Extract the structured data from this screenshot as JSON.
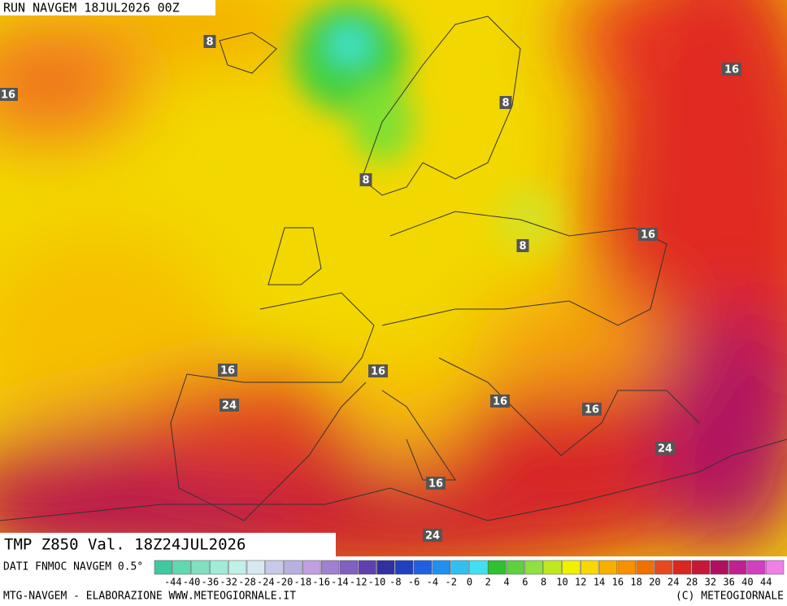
{
  "header": {
    "run": "RUN NAVGEM 18JUL2026 00Z"
  },
  "map": {
    "contour_labels": [
      "8",
      "16",
      "16",
      "8",
      "8",
      "16",
      "8",
      "16",
      "16",
      "24",
      "16",
      "16",
      "24",
      "16",
      "24"
    ]
  },
  "validity": "TMP Z850 Val. 18Z24JUL2026",
  "legend": {
    "source": "DATI FNMOC NAVGEM 0.5°",
    "scale_labels": [
      -44,
      -40,
      -36,
      -32,
      -28,
      -24,
      -20,
      -18,
      -16,
      -14,
      -12,
      -10,
      -8,
      -6,
      -4,
      -2,
      0,
      2,
      4,
      6,
      8,
      10,
      12,
      14,
      16,
      18,
      20,
      24,
      28,
      32,
      36,
      40,
      44
    ]
  },
  "footer": {
    "left": "MTG-NAVGEM - ELABORAZIONE WWW.METEOGIORNALE.IT",
    "right": "(C) METEOGIORNALE"
  }
}
